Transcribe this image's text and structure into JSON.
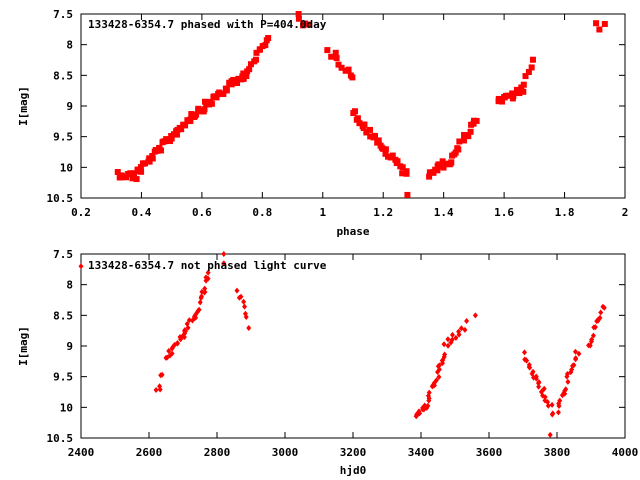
{
  "colors": {
    "points": "#ff0000",
    "frame": "#000000",
    "background": "#ffffff"
  },
  "chart_data": [
    {
      "type": "scatter",
      "title": "133428-6354.7 phased with P=404.0day",
      "xlabel": "phase",
      "ylabel": "I[mag]",
      "xlim": [
        0.2,
        2.0
      ],
      "ylim": [
        7.5,
        10.5
      ],
      "y_inverted": true,
      "grid": false,
      "xticks": [
        0.2,
        0.4,
        0.6,
        0.8,
        1.0,
        1.2,
        1.4,
        1.6,
        1.8,
        2.0
      ],
      "xtick_labels": [
        "0.2",
        "0.4",
        "0.6",
        "0.8",
        "1",
        "1.2",
        "1.4",
        "1.6",
        "1.8",
        "2"
      ],
      "yticks": [
        7.5,
        8.0,
        8.5,
        9.0,
        9.5,
        10.0,
        10.5
      ],
      "ytick_labels": [
        "7.5",
        "8",
        "8.5",
        "9",
        "9.5",
        "10",
        "10.5"
      ],
      "marker": "square",
      "segments": [
        {
          "x0": 0.32,
          "x1": 0.38,
          "y0": 10.1,
          "y1": 10.15,
          "n": 10
        },
        {
          "x0": 0.38,
          "x1": 0.48,
          "y0": 10.1,
          "y1": 9.6,
          "n": 22
        },
        {
          "x0": 0.48,
          "x1": 0.56,
          "y0": 9.6,
          "y1": 9.2,
          "n": 18
        },
        {
          "x0": 0.56,
          "x1": 0.66,
          "y0": 9.2,
          "y1": 8.8,
          "n": 22
        },
        {
          "x0": 0.66,
          "x1": 0.74,
          "y0": 8.8,
          "y1": 8.5,
          "n": 16
        },
        {
          "x0": 0.74,
          "x1": 0.82,
          "y0": 8.5,
          "y1": 7.9,
          "n": 14
        },
        {
          "x0": 0.92,
          "x1": 0.95,
          "y0": 7.6,
          "y1": 7.7,
          "n": 4
        },
        {
          "x0": 1.02,
          "x1": 1.1,
          "y0": 8.1,
          "y1": 8.5,
          "n": 10
        },
        {
          "x0": 1.1,
          "x1": 1.2,
          "y0": 9.1,
          "y1": 9.7,
          "n": 18
        },
        {
          "x0": 1.2,
          "x1": 1.28,
          "y0": 9.7,
          "y1": 10.1,
          "n": 14
        },
        {
          "x0": 1.35,
          "x1": 1.42,
          "y0": 10.1,
          "y1": 9.9,
          "n": 14
        },
        {
          "x0": 1.42,
          "x1": 1.51,
          "y0": 9.9,
          "y1": 9.2,
          "n": 16
        },
        {
          "x0": 1.58,
          "x1": 1.66,
          "y0": 8.95,
          "y1": 8.75,
          "n": 14
        },
        {
          "x0": 1.66,
          "x1": 1.7,
          "y0": 8.7,
          "y1": 8.3,
          "n": 6
        },
        {
          "x0": 1.9,
          "x1": 1.93,
          "y0": 7.7,
          "y1": 7.7,
          "n": 3
        }
      ],
      "points": [
        [
          1.28,
          10.45
        ],
        [
          0.92,
          7.5
        ]
      ]
    },
    {
      "type": "scatter",
      "title": "133428-6354.7 not phased light curve",
      "xlabel": "hjd0",
      "ylabel": "I[mag]",
      "xlim": [
        2400,
        4000
      ],
      "ylim": [
        7.5,
        10.5
      ],
      "y_inverted": true,
      "grid": false,
      "xticks": [
        2400,
        2600,
        2800,
        3000,
        3200,
        3400,
        3600,
        3800,
        4000
      ],
      "xtick_labels": [
        "2400",
        "2600",
        "2800",
        "3000",
        "3200",
        "3400",
        "3600",
        "3800",
        "4000"
      ],
      "yticks": [
        7.5,
        8.0,
        8.5,
        9.0,
        9.5,
        10.0,
        10.5
      ],
      "ytick_labels": [
        "7.5",
        "8",
        "8.5",
        "9",
        "9.5",
        "10",
        "10.5"
      ],
      "marker": "diamond",
      "segments": [
        {
          "x0": 2625,
          "x1": 2640,
          "y0": 9.75,
          "y1": 9.45,
          "n": 5
        },
        {
          "x0": 2650,
          "x1": 2700,
          "y0": 9.2,
          "y1": 8.8,
          "n": 14
        },
        {
          "x0": 2700,
          "x1": 2740,
          "y0": 8.8,
          "y1": 8.5,
          "n": 12
        },
        {
          "x0": 2740,
          "x1": 2775,
          "y0": 8.45,
          "y1": 7.85,
          "n": 14
        },
        {
          "x0": 2860,
          "x1": 2895,
          "y0": 8.1,
          "y1": 8.65,
          "n": 8
        },
        {
          "x0": 3385,
          "x1": 3420,
          "y0": 10.1,
          "y1": 10.0,
          "n": 12
        },
        {
          "x0": 3420,
          "x1": 3470,
          "y0": 9.85,
          "y1": 9.15,
          "n": 20
        },
        {
          "x0": 3470,
          "x1": 3530,
          "y0": 9.0,
          "y1": 8.65,
          "n": 12
        },
        {
          "x0": 3700,
          "x1": 3760,
          "y0": 9.15,
          "y1": 9.75,
          "n": 18
        },
        {
          "x0": 3760,
          "x1": 3790,
          "y0": 9.8,
          "y1": 10.1,
          "n": 8
        },
        {
          "x0": 3800,
          "x1": 3860,
          "y0": 10.05,
          "y1": 9.1,
          "n": 20
        },
        {
          "x0": 3890,
          "x1": 3940,
          "y0": 9.0,
          "y1": 8.35,
          "n": 14
        }
      ],
      "points": [
        [
          2400,
          7.7
        ],
        [
          2820,
          7.5
        ],
        [
          2820,
          7.65
        ],
        [
          3560,
          8.5
        ],
        [
          3780,
          10.45
        ]
      ]
    }
  ]
}
